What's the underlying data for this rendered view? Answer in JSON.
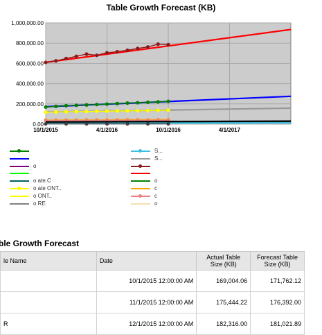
{
  "chart_data": {
    "type": "line",
    "title": "Table Growth Forecast (KB)",
    "xlabel": "",
    "ylabel": "",
    "x_ticks": [
      "10/1/2015",
      "4/1/2016",
      "10/1/2016",
      "4/1/2017"
    ],
    "x_tick_months": [
      0,
      6,
      12,
      18
    ],
    "xlim_months": [
      0,
      24
    ],
    "y_ticks": [
      "0.00",
      "200,000.00",
      "400,000.00",
      "600,000.00",
      "800,000.00",
      "1,000,000.00"
    ],
    "y_tick_values": [
      0,
      200000,
      400000,
      600000,
      800000,
      1000000
    ],
    "ylim": [
      0,
      1000000
    ],
    "grid": true,
    "plot_background": "#cccccc",
    "series": [
      {
        "color": "#ff0000",
        "role": "forecast",
        "months": [
          0,
          24
        ],
        "values": [
          610000,
          935000
        ]
      },
      {
        "color": "#8b1a1a",
        "role": "actual",
        "months": [
          0,
          1,
          2,
          3,
          4,
          5,
          6,
          7,
          8,
          9,
          10,
          11,
          12
        ],
        "values": [
          610000,
          625000,
          648000,
          670000,
          692000,
          680000,
          705000,
          715000,
          730000,
          748000,
          762000,
          790000,
          785000
        ]
      },
      {
        "color": "#0000ff",
        "role": "forecast",
        "months": [
          0,
          24
        ],
        "values": [
          172000,
          275000
        ]
      },
      {
        "color": "#008000",
        "role": "actual",
        "months": [
          0,
          1,
          2,
          3,
          4,
          5,
          6,
          7,
          8,
          9,
          10,
          11,
          12
        ],
        "values": [
          169004,
          175444,
          182316,
          186000,
          190000,
          194000,
          198000,
          203000,
          208000,
          212000,
          216000,
          220000,
          225000
        ]
      },
      {
        "color": "#999999",
        "role": "forecast",
        "months": [
          0,
          24
        ],
        "values": [
          120000,
          158000
        ]
      },
      {
        "color": "#ffff00",
        "role": "actual",
        "months": [
          0,
          1,
          2,
          3,
          4,
          5,
          6,
          7,
          8,
          9,
          10,
          11,
          12
        ],
        "values": [
          118000,
          120000,
          122000,
          124000,
          125000,
          127000,
          128000,
          130000,
          131000,
          133000,
          134000,
          136000,
          138000
        ]
      },
      {
        "color": "#ffa500",
        "role": "actual",
        "months": [
          0,
          1,
          2,
          3,
          4,
          5,
          6,
          7,
          8,
          9,
          10,
          11,
          12
        ],
        "values": [
          40000,
          40500,
          41000,
          41500,
          42000,
          42000,
          42500,
          43000,
          43500,
          44000,
          44000,
          44500,
          45000
        ]
      },
      {
        "color": "#f08080",
        "role": "actual",
        "months": [
          0,
          1,
          2,
          3,
          4,
          5,
          6,
          7,
          8,
          9,
          10,
          11,
          12
        ],
        "values": [
          35000,
          35500,
          36000,
          36000,
          36500,
          37000,
          37000,
          37500,
          38000,
          38000,
          38500,
          39000,
          39000
        ]
      },
      {
        "color": "#006060",
        "role": "forecast",
        "months": [
          0,
          24
        ],
        "values": [
          16000,
          24000
        ]
      },
      {
        "color": "#40c0e0",
        "role": "forecast",
        "months": [
          0,
          24
        ],
        "values": [
          8000,
          12000
        ]
      },
      {
        "color": "#000000",
        "role": "forecast",
        "months": [
          0,
          24
        ],
        "values": [
          22000,
          30000
        ]
      },
      {
        "color": "#404040",
        "role": "actual",
        "months": [
          0,
          2,
          4,
          6,
          8,
          10,
          12
        ],
        "values": [
          3000,
          3000,
          3000,
          3000,
          3000,
          3000,
          3000
        ]
      }
    ]
  },
  "legend": {
    "items": [
      {
        "label": "",
        "color": "#008000",
        "marker": true
      },
      {
        "label": "S...",
        "color": "#40c0e0",
        "marker": true
      },
      {
        "label": "",
        "color": "#0000ff",
        "marker": false
      },
      {
        "label": "S...",
        "color": "#999999",
        "marker": false
      },
      {
        "label": "o",
        "color": "#800080",
        "marker": false
      },
      {
        "label": "",
        "color": "#8b1a1a",
        "marker": true
      },
      {
        "label": "",
        "color": "#00ff00",
        "marker": false
      },
      {
        "label": "",
        "color": "#ff0000",
        "marker": false
      },
      {
        "label": "o ate.C",
        "color": "#006060",
        "marker": false
      },
      {
        "label": "o",
        "color": "#008000",
        "marker": false
      },
      {
        "label": "o ate ONT..",
        "color": "#ffff00",
        "marker": true
      },
      {
        "label": "c",
        "color": "#ffa500",
        "marker": false
      },
      {
        "label": "o ONT..",
        "color": "#ffff00",
        "marker": false
      },
      {
        "label": "c",
        "color": "#f08080",
        "marker": true
      },
      {
        "label": "o RE",
        "color": "#808080",
        "marker": false
      },
      {
        "label": "o",
        "color": "#f5deb3",
        "marker": false
      }
    ]
  },
  "table": {
    "title": "ble Growth Forecast",
    "headers": {
      "name": "le Name",
      "date": "Date",
      "actual": "Actual Table Size (KB)",
      "forecast": "Forecast Table Size (KB)"
    },
    "rows": [
      {
        "name": "",
        "date": "10/1/2015 12:00:00 AM",
        "actual": "169,004.06",
        "forecast": "171,762.12"
      },
      {
        "name": "",
        "date": "11/1/2015 12:00:00 AM",
        "actual": "175,444.22",
        "forecast": "176,392.00"
      },
      {
        "name": "R",
        "date": "12/1/2015 12:00:00 AM",
        "actual": "182,316.00",
        "forecast": "181,021.89"
      }
    ]
  }
}
